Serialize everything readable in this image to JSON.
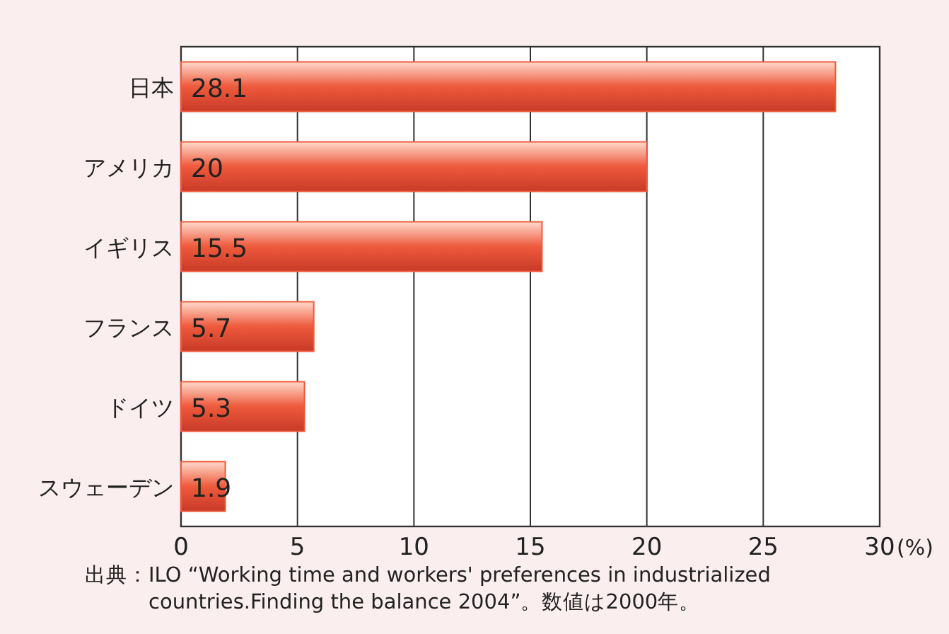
{
  "chart_data": {
    "type": "bar",
    "orientation": "horizontal",
    "categories": [
      "日本",
      "アメリカ",
      "イギリス",
      "フランス",
      "ドイツ",
      "スウェーデン"
    ],
    "values": [
      28.1,
      20,
      15.5,
      5.7,
      5.3,
      1.9
    ],
    "color": "#ee5a3c",
    "xlim": [
      0,
      30
    ],
    "xticks": [
      0,
      5,
      10,
      15,
      20,
      25,
      30
    ],
    "xlabel": "(%)",
    "grid": "x",
    "data_labels": true,
    "annotations": [
      "出典：ILO “Working time and workers' preferences in industrialized countries.Finding the balance 2004”。数値は2000年。"
    ]
  }
}
